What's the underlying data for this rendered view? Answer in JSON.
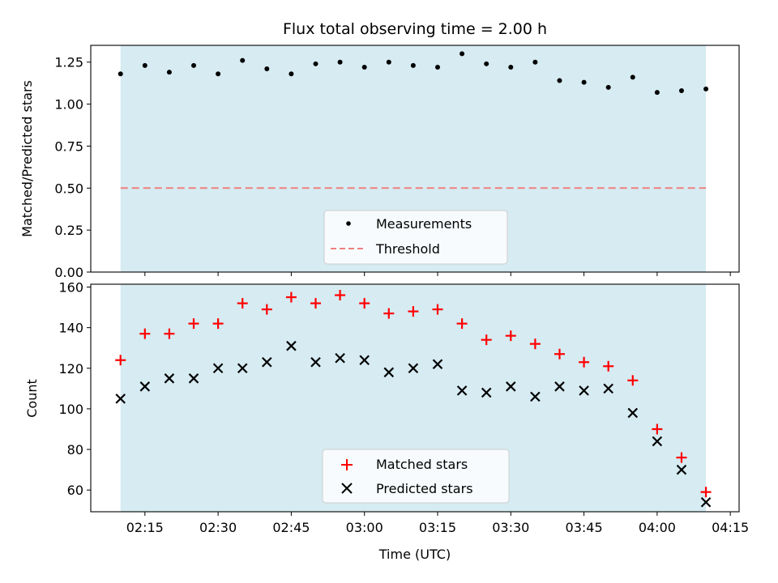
{
  "chart_data": [
    {
      "type": "scatter",
      "title": "Flux total observing time = 2.00 h",
      "xlabel": "",
      "ylabel": "Matched/Predicted stars",
      "xlim_minutes": [
        123.9,
        256.8
      ],
      "ylim": [
        0.0,
        1.35
      ],
      "yticks": [
        "0.00",
        "0.25",
        "0.50",
        "0.75",
        "1.00",
        "1.25"
      ],
      "ytick_values": [
        0,
        0.25,
        0.5,
        0.75,
        1.0,
        1.25
      ],
      "shaded_span_minutes": [
        130,
        250
      ],
      "shaded_color": "#add8e6",
      "threshold": {
        "name": "Threshold",
        "value": 0.5,
        "color": "#f08080"
      },
      "measurements": {
        "name": "Measurements",
        "color": "#000000",
        "x_minutes": [
          130,
          135,
          140,
          145,
          150,
          155,
          160,
          165,
          170,
          175,
          180,
          185,
          190,
          195,
          200,
          205,
          210,
          215,
          220,
          225,
          230,
          235,
          240,
          245,
          250
        ],
        "values": [
          1.18,
          1.23,
          1.19,
          1.23,
          1.18,
          1.26,
          1.21,
          1.18,
          1.24,
          1.25,
          1.22,
          1.25,
          1.23,
          1.22,
          1.3,
          1.24,
          1.22,
          1.25,
          1.14,
          1.13,
          1.1,
          1.16,
          1.07,
          1.08,
          1.09
        ]
      },
      "legend": {
        "position": "lower-center",
        "entries": [
          "Measurements",
          "Threshold"
        ]
      }
    },
    {
      "type": "scatter",
      "title": "",
      "xlabel": "Time (UTC)",
      "ylabel": "Count",
      "xlim_minutes": [
        123.9,
        256.8
      ],
      "ylim": [
        49.3,
        161.4
      ],
      "yticks": [
        "60",
        "80",
        "100",
        "120",
        "140",
        "160"
      ],
      "ytick_values": [
        60,
        80,
        100,
        120,
        140,
        160
      ],
      "xticks": [
        "02:15",
        "02:30",
        "02:45",
        "03:00",
        "03:15",
        "03:30",
        "03:45",
        "04:00",
        "04:15"
      ],
      "xtick_values_minutes": [
        135,
        150,
        165,
        180,
        195,
        210,
        225,
        240,
        255
      ],
      "shaded_span_minutes": [
        130,
        250
      ],
      "series": [
        {
          "name": "Matched stars",
          "marker": "+",
          "color": "#ff0000",
          "x_minutes": [
            130,
            135,
            140,
            145,
            150,
            155,
            160,
            165,
            170,
            175,
            180,
            185,
            190,
            195,
            200,
            205,
            210,
            215,
            220,
            225,
            230,
            235,
            240,
            245,
            250
          ],
          "values": [
            124,
            137,
            137,
            142,
            142,
            152,
            149,
            155,
            152,
            156,
            152,
            147,
            148,
            149,
            142,
            134,
            136,
            132,
            127,
            123,
            121,
            114,
            90,
            76,
            59
          ]
        },
        {
          "name": "Predicted stars",
          "marker": "x",
          "color": "#000000",
          "x_minutes": [
            130,
            135,
            140,
            145,
            150,
            155,
            160,
            165,
            170,
            175,
            180,
            185,
            190,
            195,
            200,
            205,
            210,
            215,
            220,
            225,
            230,
            235,
            240,
            245,
            250
          ],
          "values": [
            105,
            111,
            115,
            115,
            120,
            120,
            123,
            131,
            123,
            125,
            124,
            118,
            120,
            122,
            109,
            108,
            111,
            106,
            111,
            109,
            110,
            98,
            84,
            70,
            54
          ]
        }
      ],
      "legend": {
        "position": "lower-center",
        "entries": [
          "Matched stars",
          "Predicted stars"
        ]
      }
    }
  ]
}
